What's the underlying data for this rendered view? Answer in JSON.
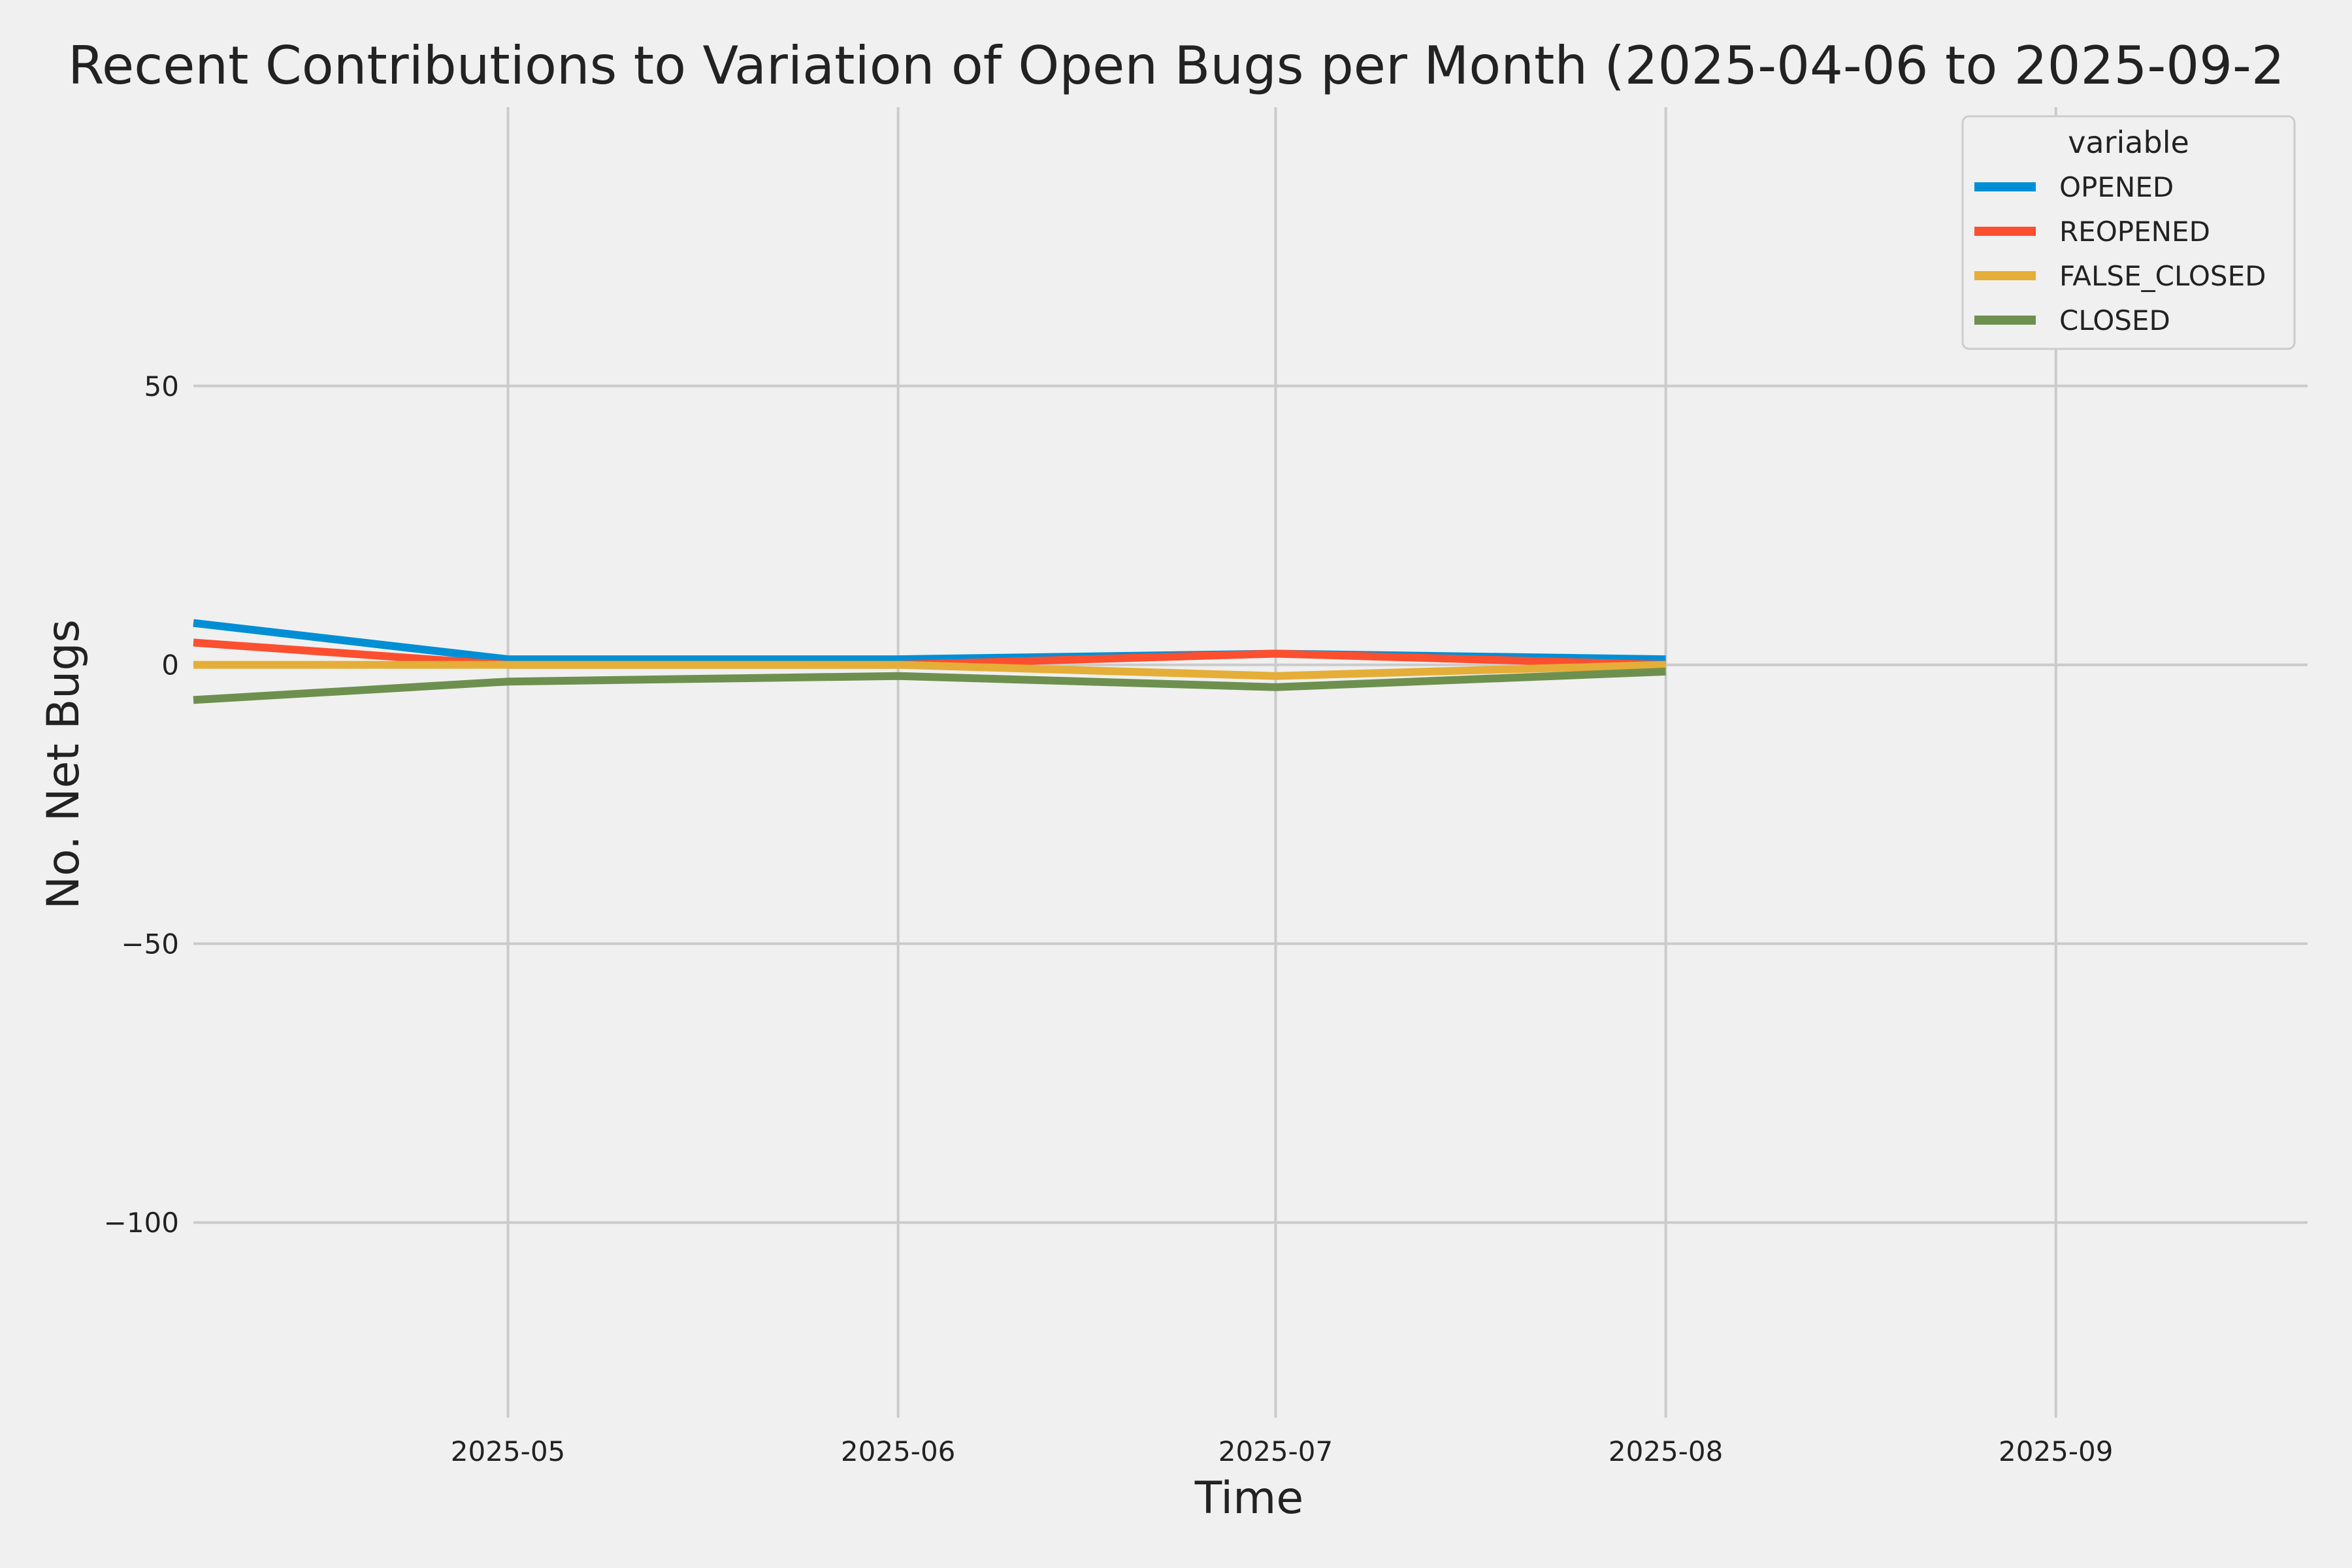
{
  "chart_data": {
    "type": "line",
    "title": "Recent Contributions to Variation of Open Bugs per Month (2025-04-06 to 2025-09-2",
    "xlabel": "Time",
    "ylabel": "No. Net Bugs",
    "x": [
      "2025-04-06",
      "2025-05-01",
      "2025-06-01",
      "2025-07-01",
      "2025-08-01"
    ],
    "xlim": [
      "2025-04-06",
      "2025-09-21"
    ],
    "ylim": [
      -135,
      100
    ],
    "x_ticks": [
      "2025-05",
      "2025-06",
      "2025-07",
      "2025-08",
      "2025-09"
    ],
    "y_ticks": [
      50,
      0,
      -50,
      -100
    ],
    "y_tick_labels": [
      "50",
      "0",
      "−50",
      "−100"
    ],
    "grid": true,
    "legend": {
      "title": "variable",
      "position": "top-right"
    },
    "series": [
      {
        "name": "OPENED",
        "color": "#008fd5",
        "values": [
          7.5,
          1,
          1,
          2,
          1
        ]
      },
      {
        "name": "REOPENED",
        "color": "#fc4f30",
        "values": [
          4,
          0,
          0,
          2,
          0
        ]
      },
      {
        "name": "FALSE_CLOSED",
        "color": "#e5ae38",
        "values": [
          0,
          0,
          0,
          -2,
          0
        ]
      },
      {
        "name": "CLOSED",
        "color": "#6d904f",
        "values": [
          -6.3,
          -3,
          -2,
          -4,
          -1.2
        ]
      }
    ]
  }
}
